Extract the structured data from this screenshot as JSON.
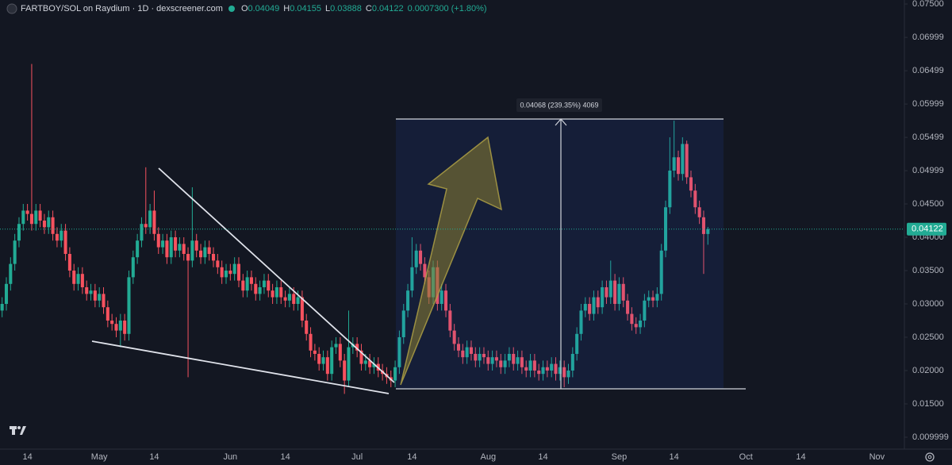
{
  "chart_data": {
    "type": "candlestick",
    "title": "FARTBOY/SOL on Raydium · 1D · dexscreener.com",
    "legend_items": [
      {
        "label": "O",
        "value": "0.04049"
      },
      {
        "label": "H",
        "value": "0.04155"
      },
      {
        "label": "L",
        "value": "0.03888"
      },
      {
        "label": "C",
        "value": "0.04122"
      }
    ],
    "change": "0.0007300 (+1.80%)",
    "annotation": "0.04068 (239.35%) 4069",
    "last_price": {
      "value": 0.04122,
      "label": "0.04122"
    },
    "up_color": "#22ab94",
    "down_color": "#f7525f",
    "grid": false,
    "ylim": [
      0.00821,
      0.0756
    ],
    "yticks": [
      {
        "value": 0.075,
        "label": "0.07500"
      },
      0.06999,
      0.06499,
      0.05999,
      0.05499,
      0.04999,
      {
        "value": 0.045,
        "label": "0.04500"
      },
      {
        "value": 0.04,
        "label": "0.04000"
      },
      {
        "value": 0.035,
        "label": "0.03500"
      },
      {
        "value": 0.03,
        "label": "0.03000"
      },
      {
        "value": 0.025,
        "label": "0.02500"
      },
      {
        "value": 0.02,
        "label": "0.02000"
      },
      {
        "value": 0.015,
        "label": "0.01500"
      },
      0.009999
    ],
    "categories": [
      null,
      null,
      null,
      null,
      null,
      null,
      "14",
      null,
      null,
      null,
      null,
      null,
      null,
      null,
      null,
      null,
      null,
      null,
      null,
      null,
      null,
      null,
      null,
      "May",
      null,
      null,
      null,
      null,
      null,
      null,
      null,
      null,
      null,
      null,
      null,
      null,
      "14",
      null,
      null,
      null,
      null,
      null,
      null,
      null,
      null,
      null,
      null,
      null,
      null,
      null,
      null,
      null,
      null,
      null,
      "Jun",
      null,
      null,
      null,
      null,
      null,
      null,
      null,
      null,
      null,
      null,
      null,
      null,
      "14",
      null,
      null,
      null,
      null,
      null,
      null,
      null,
      null,
      null,
      null,
      null,
      null,
      null,
      null,
      null,
      null,
      "Jul",
      null,
      null,
      null,
      null,
      null,
      null,
      null,
      null,
      null,
      null,
      null,
      null,
      "14",
      null,
      null,
      null,
      null,
      null,
      null,
      null,
      null,
      null,
      null,
      null,
      null,
      null,
      null,
      null,
      null,
      null,
      "Aug",
      null,
      null,
      null,
      null,
      null,
      null,
      null,
      null,
      null,
      null,
      null,
      null,
      "14",
      null,
      null,
      null,
      null,
      null,
      null,
      null,
      null,
      null,
      null,
      null,
      null,
      null,
      null,
      null,
      null,
      null,
      "Sep",
      null,
      null,
      null,
      null,
      null,
      null,
      null,
      null,
      null,
      null,
      null,
      null,
      "14",
      null,
      null,
      null,
      null,
      null,
      null,
      null,
      null,
      null,
      null,
      null,
      null,
      null,
      null,
      null,
      null,
      "Oct",
      null,
      null,
      null,
      null,
      null,
      null,
      null,
      null,
      null,
      null,
      null,
      null,
      "14",
      null,
      null,
      null,
      null,
      null,
      null,
      null,
      null,
      null,
      null,
      null,
      null,
      null,
      null,
      null,
      null,
      null,
      "Nov",
      null,
      null,
      null,
      null,
      null,
      null
    ],
    "open": [
      0.029,
      0.03,
      0.033,
      0.036,
      0.0395,
      0.042,
      0.044,
      0.0435,
      0.042,
      0.044,
      0.0425,
      0.0415,
      0.043,
      0.0405,
      0.0395,
      0.041,
      0.0375,
      0.035,
      0.033,
      0.0345,
      0.0325,
      0.0315,
      0.032,
      0.0305,
      0.0315,
      0.0295,
      0.0275,
      0.027,
      0.026,
      0.0275,
      0.0255,
      0.034,
      0.037,
      0.0395,
      0.042,
      0.0415,
      0.044,
      0.0405,
      0.0385,
      0.0395,
      0.037,
      0.04,
      0.038,
      0.039,
      0.0375,
      0.0365,
      0.0395,
      0.038,
      0.037,
      0.0385,
      0.0375,
      0.0365,
      0.0355,
      0.034,
      0.035,
      0.0345,
      0.036,
      0.0335,
      0.032,
      0.034,
      0.033,
      0.0315,
      0.0325,
      0.0335,
      0.032,
      0.031,
      0.0325,
      0.031,
      0.0305,
      0.0315,
      0.03,
      0.031,
      0.0275,
      0.0255,
      0.023,
      0.0225,
      0.021,
      0.022,
      0.0195,
      0.0235,
      0.024,
      0.0215,
      0.0185,
      0.0235,
      0.024,
      0.023,
      0.021,
      0.0215,
      0.0205,
      0.021,
      0.02,
      0.0195,
      0.019,
      0.0185,
      0.0205,
      0.025,
      0.029,
      0.032,
      0.0355,
      0.038,
      0.036,
      0.034,
      0.031,
      0.0355,
      0.03,
      0.032,
      0.029,
      0.026,
      0.024,
      0.023,
      0.022,
      0.0235,
      0.0225,
      0.0215,
      0.0225,
      0.022,
      0.021,
      0.022,
      0.0215,
      0.0205,
      0.0215,
      0.0225,
      0.021,
      0.022,
      0.0205,
      0.02,
      0.0215,
      0.02,
      0.0195,
      0.0205,
      0.02,
      0.021,
      0.0195,
      0.0205,
      0.019,
      0.02,
      0.0225,
      0.0255,
      0.029,
      0.03,
      0.0285,
      0.031,
      0.0295,
      0.0325,
      0.031,
      0.0335,
      0.03,
      0.033,
      0.0305,
      0.0285,
      0.027,
      0.0265,
      0.0275,
      0.0305,
      0.031,
      0.0305,
      0.0315,
      0.038,
      0.0445,
      0.05,
      0.052,
      0.0495,
      0.054,
      0.049,
      0.047,
      0.0445,
      0.043,
      0.04049,
      null,
      null,
      null,
      null,
      null,
      null,
      null,
      null,
      null,
      null,
      null,
      null,
      null,
      null,
      null,
      null,
      null,
      null,
      null,
      null,
      null,
      null,
      null,
      null,
      null,
      null,
      null,
      null,
      null,
      null,
      null,
      null,
      null,
      null,
      null,
      null,
      null,
      null,
      null,
      null,
      null,
      null,
      null,
      null,
      null,
      null
    ],
    "high": [
      0.031,
      0.034,
      0.037,
      0.0405,
      0.043,
      0.045,
      0.045,
      0.066,
      0.045,
      0.045,
      0.0435,
      0.044,
      0.044,
      0.0415,
      0.042,
      0.042,
      0.0385,
      0.036,
      0.0355,
      0.0355,
      0.0335,
      0.033,
      0.033,
      0.0325,
      0.0325,
      0.0305,
      0.0285,
      0.028,
      0.0285,
      0.0285,
      0.035,
      0.038,
      0.0405,
      0.043,
      0.0505,
      0.045,
      0.047,
      0.0415,
      0.0405,
      0.0405,
      0.041,
      0.041,
      0.04,
      0.04,
      0.0385,
      0.0475,
      0.0405,
      0.039,
      0.0395,
      0.0395,
      0.0385,
      0.0375,
      0.0365,
      0.036,
      0.036,
      0.037,
      0.037,
      0.0345,
      0.035,
      0.035,
      0.034,
      0.0335,
      0.0345,
      0.0345,
      0.033,
      0.0335,
      0.0335,
      0.032,
      0.0325,
      0.0325,
      0.032,
      0.032,
      0.0285,
      0.0265,
      0.024,
      0.0235,
      0.023,
      0.023,
      0.0245,
      0.025,
      0.025,
      0.0225,
      0.029,
      0.025,
      0.025,
      0.024,
      0.0225,
      0.0225,
      0.022,
      0.022,
      0.021,
      0.0205,
      0.02,
      0.0215,
      0.026,
      0.03,
      0.033,
      0.04,
      0.039,
      0.039,
      0.037,
      0.035,
      0.0365,
      0.0365,
      0.033,
      0.033,
      0.03,
      0.027,
      0.025,
      0.024,
      0.0245,
      0.0245,
      0.0235,
      0.0235,
      0.0235,
      0.023,
      0.023,
      0.023,
      0.0225,
      0.0225,
      0.0235,
      0.0235,
      0.023,
      0.023,
      0.0215,
      0.0225,
      0.0225,
      0.021,
      0.0215,
      0.0215,
      0.022,
      0.022,
      0.0215,
      0.0215,
      0.021,
      0.0235,
      0.0265,
      0.03,
      0.031,
      0.031,
      0.032,
      0.032,
      0.0335,
      0.0335,
      0.0365,
      0.0345,
      0.034,
      0.034,
      0.0315,
      0.0295,
      0.028,
      0.0285,
      0.0315,
      0.032,
      0.032,
      0.0325,
      0.039,
      0.0455,
      0.055,
      0.0575,
      0.053,
      0.055,
      0.0545,
      0.05,
      0.048,
      0.0455,
      0.044,
      0.04155,
      null,
      null,
      null,
      null,
      null,
      null,
      null,
      null,
      null,
      null,
      null,
      null,
      null,
      null,
      null,
      null,
      null,
      null,
      null,
      null,
      null,
      null,
      null,
      null,
      null,
      null,
      null,
      null,
      null,
      null,
      null,
      null,
      null,
      null,
      null,
      null,
      null,
      null,
      null,
      null,
      null,
      null,
      null,
      null,
      null,
      null
    ],
    "low": [
      0.028,
      0.029,
      0.032,
      0.035,
      0.0385,
      0.041,
      0.0425,
      0.041,
      0.041,
      0.0415,
      0.0405,
      0.0405,
      0.0395,
      0.0385,
      0.0385,
      0.0365,
      0.034,
      0.032,
      0.032,
      0.0315,
      0.0305,
      0.0305,
      0.0295,
      0.0295,
      0.0285,
      0.0265,
      0.026,
      0.025,
      0.0235,
      0.0245,
      0.0245,
      0.033,
      0.036,
      0.0385,
      0.0405,
      0.0405,
      0.0395,
      0.0375,
      0.0375,
      0.036,
      0.036,
      0.037,
      0.037,
      0.0365,
      0.019,
      0.0355,
      0.037,
      0.036,
      0.036,
      0.0365,
      0.0355,
      0.0345,
      0.033,
      0.033,
      0.0335,
      0.0335,
      0.0325,
      0.031,
      0.031,
      0.032,
      0.0305,
      0.0305,
      0.0315,
      0.031,
      0.03,
      0.03,
      0.03,
      0.0295,
      0.0295,
      0.029,
      0.029,
      0.0265,
      0.0245,
      0.022,
      0.0215,
      0.02,
      0.02,
      0.0185,
      0.0185,
      0.0225,
      0.0205,
      0.0165,
      0.0175,
      0.0225,
      0.022,
      0.02,
      0.02,
      0.0195,
      0.0195,
      0.019,
      0.0185,
      0.018,
      0.0175,
      0.0175,
      0.0195,
      0.024,
      0.028,
      0.031,
      0.0345,
      0.035,
      0.033,
      0.03,
      0.03,
      0.029,
      0.029,
      0.028,
      0.025,
      0.023,
      0.022,
      0.021,
      0.021,
      0.0215,
      0.0205,
      0.0205,
      0.021,
      0.02,
      0.02,
      0.0205,
      0.0195,
      0.0195,
      0.0205,
      0.02,
      0.02,
      0.0195,
      0.019,
      0.019,
      0.019,
      0.0185,
      0.0185,
      0.019,
      0.019,
      0.0185,
      0.0185,
      0.0175,
      0.018,
      0.019,
      0.0215,
      0.0245,
      0.028,
      0.0275,
      0.0275,
      0.0285,
      0.0285,
      0.03,
      0.03,
      0.029,
      0.029,
      0.0295,
      0.0275,
      0.026,
      0.0255,
      0.0255,
      0.0265,
      0.0295,
      0.0295,
      0.0295,
      0.0305,
      0.037,
      0.0435,
      0.049,
      0.0485,
      0.0485,
      0.048,
      0.046,
      0.0435,
      0.042,
      0.0345,
      0.03888,
      null,
      null,
      null,
      null,
      null,
      null,
      null,
      null,
      null,
      null,
      null,
      null,
      null,
      null,
      null,
      null,
      null,
      null,
      null,
      null,
      null,
      null,
      null,
      null,
      null,
      null,
      null,
      null,
      null,
      null,
      null,
      null,
      null,
      null,
      null,
      null,
      null,
      null,
      null,
      null,
      null,
      null,
      null,
      null,
      null,
      null
    ],
    "close": [
      0.03,
      0.033,
      0.036,
      0.0395,
      0.042,
      0.044,
      0.0435,
      0.042,
      0.044,
      0.0425,
      0.0415,
      0.043,
      0.0405,
      0.0395,
      0.041,
      0.0375,
      0.035,
      0.033,
      0.0345,
      0.0325,
      0.0315,
      0.032,
      0.0305,
      0.0315,
      0.0295,
      0.0275,
      0.027,
      0.026,
      0.0275,
      0.0255,
      0.034,
      0.037,
      0.0395,
      0.042,
      0.0415,
      0.044,
      0.0405,
      0.0385,
      0.0395,
      0.037,
      0.04,
      0.038,
      0.039,
      0.0375,
      0.0365,
      0.0395,
      0.038,
      0.037,
      0.0385,
      0.0375,
      0.0365,
      0.0355,
      0.034,
      0.035,
      0.0345,
      0.036,
      0.0335,
      0.032,
      0.034,
      0.033,
      0.0315,
      0.0325,
      0.0335,
      0.032,
      0.031,
      0.0325,
      0.031,
      0.0305,
      0.0315,
      0.03,
      0.031,
      0.0275,
      0.0255,
      0.023,
      0.0225,
      0.021,
      0.022,
      0.0195,
      0.0235,
      0.024,
      0.0215,
      0.0185,
      0.0235,
      0.024,
      0.023,
      0.021,
      0.0215,
      0.0205,
      0.021,
      0.02,
      0.0195,
      0.019,
      0.0185,
      0.0205,
      0.025,
      0.029,
      0.032,
      0.0355,
      0.038,
      0.036,
      0.034,
      0.031,
      0.0355,
      0.03,
      0.032,
      0.029,
      0.026,
      0.024,
      0.023,
      0.022,
      0.0235,
      0.0225,
      0.0215,
      0.0225,
      0.022,
      0.021,
      0.022,
      0.0215,
      0.0205,
      0.0215,
      0.0225,
      0.021,
      0.022,
      0.0205,
      0.02,
      0.0215,
      0.02,
      0.0195,
      0.0205,
      0.02,
      0.021,
      0.0195,
      0.0205,
      0.019,
      0.02,
      0.0225,
      0.0255,
      0.029,
      0.03,
      0.0285,
      0.031,
      0.0295,
      0.0325,
      0.031,
      0.0335,
      0.03,
      0.033,
      0.0305,
      0.0285,
      0.027,
      0.0265,
      0.0275,
      0.0305,
      0.031,
      0.0305,
      0.0315,
      0.038,
      0.0445,
      0.05,
      0.052,
      0.0495,
      0.054,
      0.049,
      0.047,
      0.0445,
      0.043,
      0.04049,
      0.04122,
      null,
      null,
      null,
      null,
      null,
      null,
      null,
      null,
      null,
      null,
      null,
      null,
      null,
      null,
      null,
      null,
      null,
      null,
      null,
      null,
      null,
      null,
      null,
      null,
      null,
      null,
      null,
      null,
      null,
      null,
      null,
      null,
      null,
      null,
      null,
      null,
      null,
      null,
      null,
      null,
      null,
      null,
      null,
      null,
      null,
      null
    ]
  }
}
